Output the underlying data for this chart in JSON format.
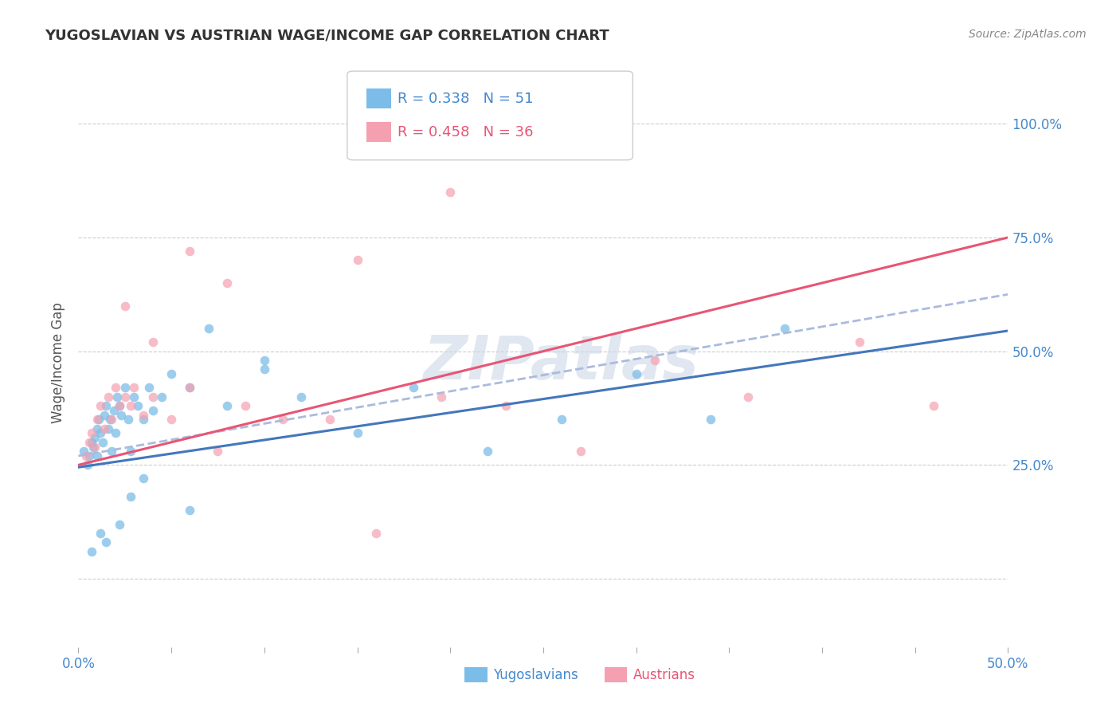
{
  "title": "YUGOSLAVIAN VS AUSTRIAN WAGE/INCOME GAP CORRELATION CHART",
  "source": "Source: ZipAtlas.com",
  "watermark": "ZIPatlas",
  "ylabel": "Wage/Income Gap",
  "xlim": [
    0.0,
    0.5
  ],
  "ylim": [
    -0.15,
    1.1
  ],
  "yticks": [
    0.0,
    0.25,
    0.5,
    0.75,
    1.0
  ],
  "ytick_labels": [
    "",
    "25.0%",
    "50.0%",
    "75.0%",
    "100.0%"
  ],
  "legend_R1": "R = 0.338",
  "legend_N1": "N = 51",
  "legend_R2": "R = 0.458",
  "legend_N2": "N = 36",
  "blue_color": "#7bbde8",
  "pink_color": "#f4a0b0",
  "blue_line_color": "#4477bb",
  "blue_dash_color": "#aabbdd",
  "pink_line_color": "#e85575",
  "background_color": "#ffffff",
  "grid_color": "#cccccc",
  "title_color": "#333333",
  "source_color": "#888888",
  "watermark_color": "#ccd8e8",
  "axis_label_color": "#4488cc",
  "blue_scatter": {
    "x": [
      0.003,
      0.005,
      0.006,
      0.007,
      0.008,
      0.009,
      0.01,
      0.01,
      0.011,
      0.012,
      0.013,
      0.014,
      0.015,
      0.016,
      0.017,
      0.018,
      0.019,
      0.02,
      0.021,
      0.022,
      0.023,
      0.025,
      0.027,
      0.028,
      0.03,
      0.032,
      0.035,
      0.038,
      0.04,
      0.045,
      0.05,
      0.06,
      0.07,
      0.08,
      0.1,
      0.12,
      0.15,
      0.18,
      0.22,
      0.26,
      0.3,
      0.34,
      0.38,
      0.007,
      0.012,
      0.015,
      0.022,
      0.028,
      0.035,
      0.06,
      0.1
    ],
    "y": [
      0.28,
      0.25,
      0.27,
      0.3,
      0.29,
      0.31,
      0.33,
      0.27,
      0.35,
      0.32,
      0.3,
      0.36,
      0.38,
      0.33,
      0.35,
      0.28,
      0.37,
      0.32,
      0.4,
      0.38,
      0.36,
      0.42,
      0.35,
      0.28,
      0.4,
      0.38,
      0.35,
      0.42,
      0.37,
      0.4,
      0.45,
      0.42,
      0.55,
      0.38,
      0.46,
      0.4,
      0.32,
      0.42,
      0.28,
      0.35,
      0.45,
      0.35,
      0.55,
      0.06,
      0.1,
      0.08,
      0.12,
      0.18,
      0.22,
      0.15,
      0.48
    ]
  },
  "pink_scatter": {
    "x": [
      0.004,
      0.006,
      0.007,
      0.009,
      0.01,
      0.012,
      0.014,
      0.016,
      0.018,
      0.02,
      0.022,
      0.025,
      0.028,
      0.03,
      0.035,
      0.04,
      0.05,
      0.06,
      0.075,
      0.09,
      0.11,
      0.135,
      0.16,
      0.195,
      0.23,
      0.27,
      0.31,
      0.36,
      0.42,
      0.46,
      0.2,
      0.15,
      0.08,
      0.06,
      0.04,
      0.025
    ],
    "y": [
      0.27,
      0.3,
      0.32,
      0.29,
      0.35,
      0.38,
      0.33,
      0.4,
      0.35,
      0.42,
      0.38,
      0.4,
      0.38,
      0.42,
      0.36,
      0.4,
      0.35,
      0.42,
      0.28,
      0.38,
      0.35,
      0.35,
      0.1,
      0.4,
      0.38,
      0.28,
      0.48,
      0.4,
      0.52,
      0.38,
      0.85,
      0.7,
      0.65,
      0.72,
      0.52,
      0.6
    ]
  },
  "blue_trend": {
    "x": [
      0.0,
      0.5
    ],
    "y": [
      0.245,
      0.545
    ]
  },
  "pink_trend": {
    "x": [
      0.0,
      0.5
    ],
    "y": [
      0.25,
      0.75
    ]
  },
  "blue_trend_dash": {
    "x": [
      0.0,
      0.5
    ],
    "y": [
      0.27,
      0.625
    ]
  }
}
